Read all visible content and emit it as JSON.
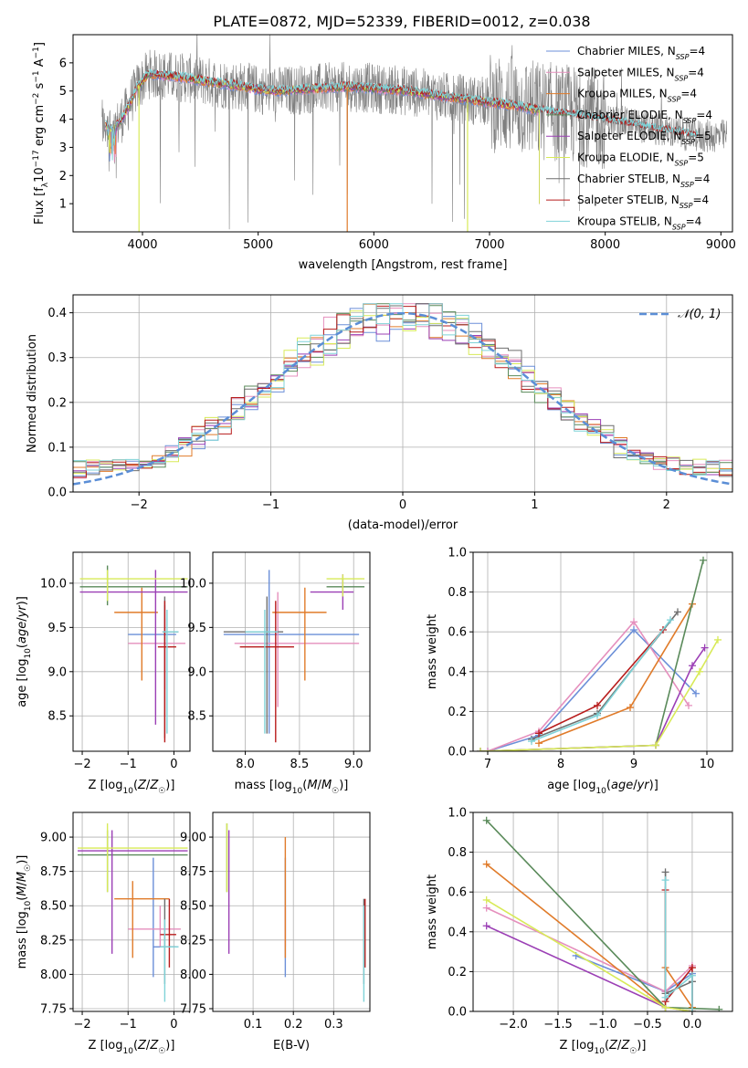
{
  "title": "PLATE=0872, MJD=52339, FIBERID=0012, z=0.038",
  "colors": {
    "Chabrier MILES": "#6b8fd8",
    "Salpeter MILES": "#e58fbd",
    "Kroupa MILES": "#e07b2a",
    "Chabrier ELODIE": "#5a8a5a",
    "Salpeter ELODIE": "#9b3fb5",
    "Kroupa ELODIE": "#d8ea58",
    "Chabrier STELIB": "#6e6e6e",
    "Salpeter STELIB": "#b81c1c",
    "Kroupa STELIB": "#7fd3d8",
    "data_spectrum": "#808080",
    "normal_curve": "#5b8ed6"
  },
  "chart_data": [
    {
      "id": "spectrum",
      "type": "line",
      "xlabel": "wavelength [Angstrom, rest frame]",
      "ylabel": "Flux [f_λ 10^-17 erg cm^-2 s^-1 A^-1]",
      "xlim": [
        3400,
        9100
      ],
      "ylim": [
        0,
        7
      ],
      "xticks": [
        4000,
        5000,
        6000,
        7000,
        8000,
        9000
      ],
      "yticks": [
        1,
        2,
        3,
        4,
        5,
        6
      ],
      "grid": false,
      "legend_position": "upper-right",
      "legend": [
        {
          "label": "Chabrier MILES, N",
          "sub": "SSP",
          "n": "=4"
        },
        {
          "label": "Salpeter MILES, N",
          "sub": "SSP",
          "n": "=4"
        },
        {
          "label": "Kroupa MILES, N",
          "sub": "SSP",
          "n": "=4"
        },
        {
          "label": "Chabrier ELODIE, N",
          "sub": "SSP",
          "n": "=4"
        },
        {
          "label": "Salpeter ELODIE, N",
          "sub": "SSP",
          "n": "=5"
        },
        {
          "label": "Kroupa ELODIE, N",
          "sub": "SSP",
          "n": "=5"
        },
        {
          "label": "Chabrier STELIB, N",
          "sub": "SSP",
          "n": "=4"
        },
        {
          "label": "Salpeter STELIB, N",
          "sub": "SSP",
          "n": "=4"
        },
        {
          "label": "Kroupa STELIB, N",
          "sub": "SSP",
          "n": "=4"
        }
      ],
      "model_continuum": [
        [
          3680,
          3.8
        ],
        [
          3750,
          3.6
        ],
        [
          3850,
          4.2
        ],
        [
          3950,
          5.1
        ],
        [
          4050,
          5.6
        ],
        [
          4200,
          5.55
        ],
        [
          4400,
          5.45
        ],
        [
          4600,
          5.3
        ],
        [
          4800,
          5.2
        ],
        [
          5000,
          5.05
        ],
        [
          5200,
          5.0
        ],
        [
          5500,
          5.1
        ],
        [
          5800,
          5.15
        ],
        [
          6000,
          5.1
        ],
        [
          6300,
          5.0
        ],
        [
          6600,
          4.8
        ],
        [
          6900,
          4.65
        ],
        [
          7200,
          4.5
        ],
        [
          7450,
          4.3
        ],
        [
          7800,
          4.1
        ],
        [
          8200,
          3.85
        ],
        [
          8500,
          3.6
        ],
        [
          8800,
          3.4
        ]
      ],
      "data_range": [
        3650,
        9050
      ]
    },
    {
      "id": "residuals",
      "type": "step",
      "xlabel": "(data-model)/error",
      "ylabel": "Normed distribution",
      "xlim": [
        -2.5,
        2.5
      ],
      "ylim": [
        0,
        0.44
      ],
      "xticks": [
        -2,
        -1,
        0,
        1,
        2
      ],
      "yticks": [
        0.0,
        0.1,
        0.2,
        0.3,
        0.4
      ],
      "grid": true,
      "legend_label": "𝒩(0, 1)",
      "legend_position": "upper-right",
      "bin_width": 0.1
    },
    {
      "id": "age-vs-Z",
      "type": "errorbar",
      "xlabel": "Z [log10(Z/Z☉)]",
      "ylabel": "age  [log10(age/yr)]",
      "xlim": [
        -2.2,
        0.35
      ],
      "ylim": [
        8.1,
        10.35
      ],
      "xticks": [
        -2,
        -1,
        0
      ],
      "yticks": [
        8.5,
        9.0,
        9.5,
        10.0
      ],
      "grid": true,
      "points": [
        {
          "s": "Chabrier MILES",
          "x": -0.2,
          "y": 9.42,
          "xe": [
            -1.0,
            0.05
          ],
          "ye": [
            8.8,
            9.75
          ]
        },
        {
          "s": "Salpeter MILES",
          "x": -0.2,
          "y": 9.32,
          "xe": [
            -1.0,
            0.25
          ],
          "ye": [
            8.5,
            9.6
          ]
        },
        {
          "s": "Kroupa MILES",
          "x": -0.7,
          "y": 9.67,
          "xe": [
            -1.3,
            -0.35
          ],
          "ye": [
            8.9,
            9.95
          ]
        },
        {
          "s": "Chabrier ELODIE",
          "x": -1.45,
          "y": 9.96,
          "xe": [
            -2.05,
            0.3
          ],
          "ye": [
            9.75,
            10.2
          ]
        },
        {
          "s": "Salpeter ELODIE",
          "x": -0.4,
          "y": 9.9,
          "xe": [
            -2.05,
            0.3
          ],
          "ye": [
            8.4,
            10.15
          ]
        },
        {
          "s": "Kroupa ELODIE",
          "x": -1.45,
          "y": 10.05,
          "xe": [
            -2.05,
            0.3
          ],
          "ye": [
            9.8,
            10.15
          ]
        },
        {
          "s": "Chabrier STELIB",
          "x": -0.2,
          "y": 9.45,
          "xe": [
            -0.25,
            0.1
          ],
          "ye": [
            8.25,
            9.85
          ]
        },
        {
          "s": "Salpeter STELIB",
          "x": -0.2,
          "y": 9.28,
          "xe": [
            -0.35,
            0.05
          ],
          "ye": [
            8.2,
            9.8
          ]
        },
        {
          "s": "Kroupa STELIB",
          "x": -0.15,
          "y": 9.45,
          "xe": [
            -0.25,
            0.1
          ],
          "ye": [
            8.3,
            9.7
          ]
        }
      ]
    },
    {
      "id": "age-vs-mass",
      "type": "errorbar",
      "xlabel": "mass [log10(M/M☉)]",
      "ylabel": "",
      "xlim": [
        7.7,
        9.15
      ],
      "ylim": [
        8.1,
        10.35
      ],
      "xticks": [
        8.0,
        8.5,
        9.0
      ],
      "yticks": [
        8.5,
        9.0,
        9.5,
        10.0
      ],
      "grid": true,
      "points": [
        {
          "s": "Chabrier MILES",
          "x": 8.22,
          "y": 9.42,
          "xe": [
            7.8,
            9.05
          ],
          "ye": [
            8.3,
            10.15
          ]
        },
        {
          "s": "Salpeter MILES",
          "x": 8.3,
          "y": 9.32,
          "xe": [
            7.9,
            9.05
          ],
          "ye": [
            8.6,
            9.9
          ]
        },
        {
          "s": "Kroupa MILES",
          "x": 8.55,
          "y": 9.67,
          "xe": [
            8.25,
            8.75
          ],
          "ye": [
            8.9,
            9.95
          ]
        },
        {
          "s": "Chabrier ELODIE",
          "x": 8.9,
          "y": 9.96,
          "xe": [
            8.75,
            9.1
          ],
          "ye": [
            9.85,
            10.05
          ]
        },
        {
          "s": "Salpeter ELODIE",
          "x": 8.9,
          "y": 9.9,
          "xe": [
            8.6,
            9.0
          ],
          "ye": [
            9.7,
            10.1
          ]
        },
        {
          "s": "Kroupa ELODIE",
          "x": 8.9,
          "y": 10.05,
          "xe": [
            8.75,
            9.1
          ],
          "ye": [
            9.85,
            10.1
          ]
        },
        {
          "s": "Chabrier STELIB",
          "x": 8.2,
          "y": 9.45,
          "xe": [
            7.8,
            8.35
          ],
          "ye": [
            8.3,
            9.85
          ]
        },
        {
          "s": "Salpeter STELIB",
          "x": 8.28,
          "y": 9.28,
          "xe": [
            7.95,
            8.45
          ],
          "ye": [
            8.2,
            9.8
          ]
        },
        {
          "s": "Kroupa STELIB",
          "x": 8.18,
          "y": 9.45,
          "xe": [
            8.0,
            8.3
          ],
          "ye": [
            8.3,
            9.7
          ]
        }
      ]
    },
    {
      "id": "weight-vs-age",
      "type": "line",
      "xlabel": "age  [log10(age/yr)]",
      "ylabel": "mass weight",
      "xlim": [
        6.8,
        10.35
      ],
      "ylim": [
        0,
        1.0
      ],
      "xticks": [
        7,
        8,
        9,
        10
      ],
      "yticks": [
        0.0,
        0.2,
        0.4,
        0.6,
        0.8,
        1.0
      ],
      "grid": true,
      "series": [
        {
          "s": "Chabrier MILES",
          "x": [
            7.0,
            7.7,
            9.0,
            9.85
          ],
          "y": [
            0.0,
            0.08,
            0.61,
            0.29
          ]
        },
        {
          "s": "Salpeter MILES",
          "x": [
            7.0,
            7.7,
            9.0,
            9.75
          ],
          "y": [
            0.0,
            0.1,
            0.65,
            0.23
          ]
        },
        {
          "s": "Kroupa MILES",
          "x": [
            7.7,
            8.95,
            9.8
          ],
          "y": [
            0.04,
            0.22,
            0.74
          ]
        },
        {
          "s": "Chabrier ELODIE",
          "x": [
            6.9,
            9.3,
            9.95
          ],
          "y": [
            0.0,
            0.03,
            0.96
          ]
        },
        {
          "s": "Salpeter ELODIE",
          "x": [
            6.9,
            9.3,
            9.8,
            9.97
          ],
          "y": [
            0.0,
            0.03,
            0.43,
            0.52
          ]
        },
        {
          "s": "Kroupa ELODIE",
          "x": [
            6.9,
            9.3,
            9.9,
            10.15
          ],
          "y": [
            0.0,
            0.03,
            0.4,
            0.56
          ]
        },
        {
          "s": "Chabrier STELIB",
          "x": [
            7.6,
            8.5,
            9.6
          ],
          "y": [
            0.06,
            0.19,
            0.7
          ]
        },
        {
          "s": "Salpeter STELIB",
          "x": [
            7.7,
            8.5,
            9.4
          ],
          "y": [
            0.09,
            0.23,
            0.61
          ]
        },
        {
          "s": "Kroupa STELIB",
          "x": [
            7.6,
            8.5,
            9.5
          ],
          "y": [
            0.05,
            0.18,
            0.66
          ]
        }
      ]
    },
    {
      "id": "mass-vs-Z",
      "type": "errorbar",
      "xlabel": "Z [log10(Z/Z☉)]",
      "ylabel": "mass [log10(M/M☉)]",
      "xlim": [
        -2.2,
        0.35
      ],
      "ylim": [
        7.73,
        9.18
      ],
      "xticks": [
        -2,
        -1,
        0
      ],
      "yticks": [
        7.75,
        8.0,
        8.25,
        8.5,
        8.75,
        9.0
      ],
      "grid": true,
      "points": [
        {
          "s": "Chabrier MILES",
          "x": -0.45,
          "y": 8.2,
          "xe": [
            -0.45,
            0.1
          ],
          "ye": [
            7.98,
            8.85
          ]
        },
        {
          "s": "Salpeter MILES",
          "x": -0.3,
          "y": 8.33,
          "xe": [
            -1.0,
            0.15
          ],
          "ye": [
            8.2,
            8.5
          ]
        },
        {
          "s": "Kroupa MILES",
          "x": -0.9,
          "y": 8.55,
          "xe": [
            -1.3,
            -0.1
          ],
          "ye": [
            8.12,
            8.68
          ]
        },
        {
          "s": "Chabrier ELODIE",
          "x": -1.45,
          "y": 8.87,
          "xe": [
            -2.1,
            0.3
          ],
          "ye": [
            8.6,
            9.05
          ]
        },
        {
          "s": "Salpeter ELODIE",
          "x": -1.35,
          "y": 8.9,
          "xe": [
            -2.1,
            0.3
          ],
          "ye": [
            8.15,
            9.05
          ]
        },
        {
          "s": "Kroupa ELODIE",
          "x": -1.45,
          "y": 8.92,
          "xe": [
            -2.1,
            0.3
          ],
          "ye": [
            8.6,
            9.1
          ]
        },
        {
          "s": "Chabrier STELIB",
          "x": -0.2,
          "y": 8.2,
          "xe": [
            -0.3,
            0.05
          ],
          "ye": [
            7.93,
            8.55
          ]
        },
        {
          "s": "Salpeter STELIB",
          "x": -0.1,
          "y": 8.29,
          "xe": [
            -0.3,
            0.05
          ],
          "ye": [
            8.05,
            8.55
          ]
        },
        {
          "s": "Kroupa STELIB",
          "x": -0.2,
          "y": 8.2,
          "xe": [
            -0.3,
            0.1
          ],
          "ye": [
            7.8,
            8.4
          ]
        }
      ]
    },
    {
      "id": "mass-vs-EBV",
      "type": "errorbar",
      "xlabel": "E(B-V)",
      "ylabel": "",
      "xlim": [
        0.0,
        0.39
      ],
      "ylim": [
        7.73,
        9.18
      ],
      "xticks": [
        0.1,
        0.2,
        0.3
      ],
      "yticks": [
        7.75,
        8.0,
        8.25,
        8.5,
        8.75,
        9.0
      ],
      "grid": true,
      "points": [
        {
          "s": "Chabrier MILES",
          "x": 0.18,
          "y": 8.2,
          "xe": [
            0.18,
            0.18
          ],
          "ye": [
            7.98,
            8.85
          ]
        },
        {
          "s": "Salpeter MILES",
          "x": 0.18,
          "y": 8.33,
          "xe": [
            0.18,
            0.18
          ],
          "ye": [
            8.2,
            8.5
          ]
        },
        {
          "s": "Kroupa MILES",
          "x": 0.18,
          "y": 8.55,
          "xe": [
            0.18,
            0.18
          ],
          "ye": [
            8.12,
            9.0
          ]
        },
        {
          "s": "Chabrier ELODIE",
          "x": 0.035,
          "y": 8.87,
          "xe": [
            0.035,
            0.035
          ],
          "ye": [
            8.6,
            9.1
          ]
        },
        {
          "s": "Salpeter ELODIE",
          "x": 0.04,
          "y": 8.9,
          "xe": [
            0.04,
            0.04
          ],
          "ye": [
            8.15,
            9.05
          ]
        },
        {
          "s": "Kroupa ELODIE",
          "x": 0.035,
          "y": 8.92,
          "xe": [
            0.035,
            0.035
          ],
          "ye": [
            8.6,
            9.1
          ]
        },
        {
          "s": "Chabrier STELIB",
          "x": 0.375,
          "y": 8.2,
          "xe": [
            0.375,
            0.375
          ],
          "ye": [
            7.93,
            8.55
          ]
        },
        {
          "s": "Salpeter STELIB",
          "x": 0.378,
          "y": 8.29,
          "xe": [
            0.378,
            0.378
          ],
          "ye": [
            8.05,
            8.55
          ]
        },
        {
          "s": "Kroupa STELIB",
          "x": 0.375,
          "y": 8.2,
          "xe": [
            0.375,
            0.375
          ],
          "ye": [
            7.8,
            8.5
          ]
        }
      ]
    },
    {
      "id": "weight-vs-Z",
      "type": "line",
      "xlabel": "Z [log10(Z/Z☉)]",
      "ylabel": "mass weight",
      "xlim": [
        -2.45,
        0.45
      ],
      "ylim": [
        0,
        1.0
      ],
      "xticks": [
        -2.0,
        -1.5,
        -1.0,
        -0.5,
        0.0
      ],
      "yticks": [
        0.0,
        0.2,
        0.4,
        0.6,
        0.8,
        1.0
      ],
      "grid": true,
      "series": [
        {
          "s": "Chabrier MILES",
          "x": [
            -1.3,
            -0.3,
            0.0
          ],
          "y": [
            0.28,
            0.1,
            0.19
          ]
        },
        {
          "s": "Salpeter MILES",
          "x": [
            -2.3,
            -0.3,
            0.0
          ],
          "y": [
            0.52,
            0.1,
            0.23
          ]
        },
        {
          "s": "Kroupa MILES",
          "x": [
            -2.3,
            -0.3,
            -0.3,
            0.0
          ],
          "y": [
            0.74,
            0.02,
            0.22,
            0.02
          ]
        },
        {
          "s": "Chabrier ELODIE",
          "x": [
            -2.3,
            -0.3,
            0.3
          ],
          "y": [
            0.96,
            0.02,
            0.01
          ]
        },
        {
          "s": "Salpeter ELODIE",
          "x": [
            -2.3,
            -0.3,
            0.0
          ],
          "y": [
            0.43,
            0.02,
            0.0
          ]
        },
        {
          "s": "Kroupa ELODIE",
          "x": [
            -2.3,
            -0.3,
            0.0
          ],
          "y": [
            0.56,
            0.02,
            0.0
          ]
        },
        {
          "s": "Chabrier STELIB",
          "x": [
            -0.3,
            -0.3,
            0.0,
            0.0
          ],
          "y": [
            0.7,
            0.09,
            0.15,
            0.0
          ]
        },
        {
          "s": "Salpeter STELIB",
          "x": [
            -0.3,
            -0.3,
            0.0,
            0.0
          ],
          "y": [
            0.61,
            0.05,
            0.22,
            0.0
          ]
        },
        {
          "s": "Kroupa STELIB",
          "x": [
            -0.3,
            -0.3,
            0.0,
            0.0
          ],
          "y": [
            0.66,
            0.07,
            0.18,
            0.0
          ]
        }
      ]
    }
  ]
}
